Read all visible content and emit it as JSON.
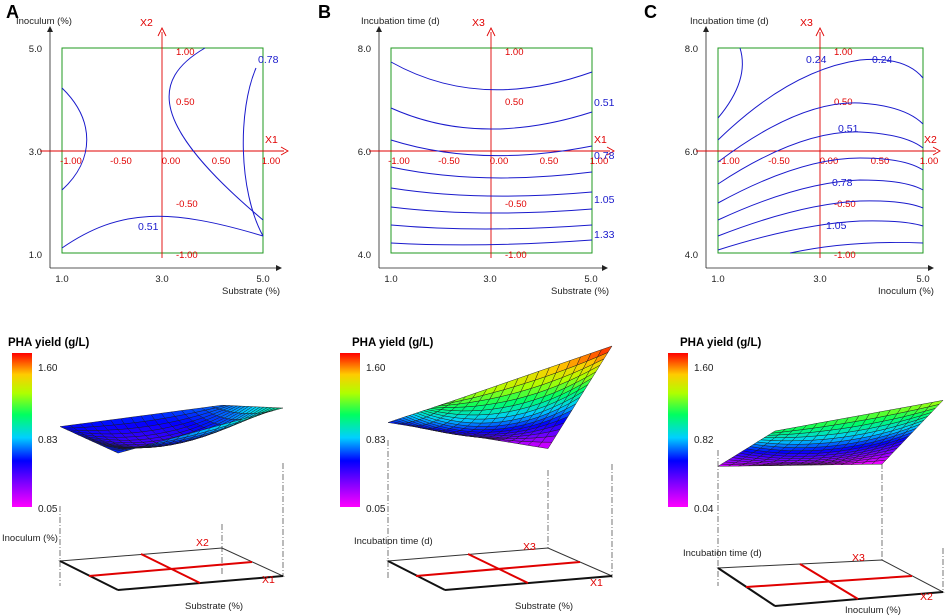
{
  "figure": {
    "colors": {
      "axis": "#222222",
      "frame": "#1f9a1f",
      "coded": "#e00000",
      "contour": "#1a1acc"
    }
  },
  "chart_data": [
    {
      "panel": "A",
      "type": "contour",
      "xlabel": "Substrate (%)",
      "ylabel": "Inoculum (%)",
      "xlim": [
        1.0,
        5.0
      ],
      "ylim": [
        1.0,
        5.0
      ],
      "x_ticks": [
        "1.0",
        "3.0",
        "5.0"
      ],
      "y_ticks": [
        "1.0",
        "3.0",
        "5.0"
      ],
      "coded_x_name": "X1",
      "coded_y_name": "X2",
      "coded_x_ticks": [
        "-1.00",
        "-0.50",
        "0.00",
        "0.50",
        "1.00"
      ],
      "coded_y_ticks": [
        "1.00",
        "0.50",
        "-0.50",
        "-1.00"
      ],
      "contour_labels": [
        "0.78",
        "0.51"
      ]
    },
    {
      "panel": "B",
      "type": "contour",
      "xlabel": "Substrate (%)",
      "ylabel": "Incubation time (d)",
      "xlim": [
        1.0,
        5.0
      ],
      "ylim": [
        4.0,
        8.0
      ],
      "x_ticks": [
        "1.0",
        "3.0",
        "5.0"
      ],
      "y_ticks": [
        "4.0",
        "6.0",
        "8.0"
      ],
      "coded_x_name": "X1",
      "coded_y_name": "X3",
      "coded_x_ticks": [
        "-1.00",
        "-0.50",
        "0.00",
        "0.50",
        "1.00"
      ],
      "coded_y_ticks": [
        "1.00",
        "0.50",
        "-0.50",
        "-1.00"
      ],
      "contour_labels": [
        "0.51",
        "0.78",
        "1.05",
        "1.33"
      ]
    },
    {
      "panel": "C",
      "type": "contour",
      "xlabel": "Inoculum (%)",
      "ylabel": "Incubation time (d)",
      "xlim": [
        1.0,
        5.0
      ],
      "ylim": [
        4.0,
        8.0
      ],
      "x_ticks": [
        "1.0",
        "3.0",
        "5.0"
      ],
      "y_ticks": [
        "4.0",
        "6.0",
        "8.0"
      ],
      "coded_x_name": "X2",
      "coded_y_name": "X3",
      "coded_x_ticks": [
        "-1.00",
        "-0.50",
        "0.00",
        "0.50",
        "1.00"
      ],
      "coded_y_ticks": [
        "1.00",
        "0.50",
        "-0.50",
        "-1.00"
      ],
      "contour_labels": [
        "0.24",
        "0.24",
        "0.51",
        "0.78",
        "1.05"
      ]
    },
    {
      "panel": "A",
      "type": "surface",
      "title": "PHA yield (g/L)",
      "zlim": [
        0.05,
        1.6
      ],
      "colorbar_ticks": [
        "1.60",
        "0.83",
        "0.05"
      ],
      "axis1_label": "Inoculum (%)",
      "axis2_label": "Substrate (%)",
      "coded1": "X2",
      "coded2": "X1",
      "grid": {
        "x": [
          -1,
          1
        ],
        "y": [
          -1,
          1
        ],
        "corners": {
          "near_left": 0.52,
          "near_right": 0.62,
          "far_left": 0.55,
          "far_right": 0.92
        },
        "center": 0.42
      }
    },
    {
      "panel": "B",
      "type": "surface",
      "title": "PHA yield (g/L)",
      "zlim": [
        0.05,
        1.6
      ],
      "colorbar_ticks": [
        "1.60",
        "0.83",
        "0.05"
      ],
      "axis1_label": "Incubation time (d)",
      "axis2_label": "Substrate (%)",
      "coded1": "X3",
      "coded2": "X1",
      "grid": {
        "x": [
          -1,
          1
        ],
        "y": [
          -1,
          1
        ],
        "corners": {
          "near_left": 0.55,
          "near_right": 0.1,
          "far_left": 1.1,
          "far_right": 1.6
        },
        "center": 0.6
      }
    },
    {
      "panel": "C",
      "type": "surface",
      "title": "PHA yield (g/L)",
      "zlim": [
        0.04,
        1.6
      ],
      "colorbar_ticks": [
        "1.60",
        "0.82",
        "0.04"
      ],
      "axis1_label": "Incubation time (d)",
      "axis2_label": "Inoculum (%)",
      "coded1": "X3",
      "coded2": "X2",
      "grid": {
        "x": [
          -1,
          1
        ],
        "y": [
          -1,
          1
        ],
        "corners": {
          "near_left": 0.12,
          "near_right": 0.05,
          "far_left": 1.0,
          "far_right": 1.2
        },
        "center": 0.45
      }
    }
  ]
}
